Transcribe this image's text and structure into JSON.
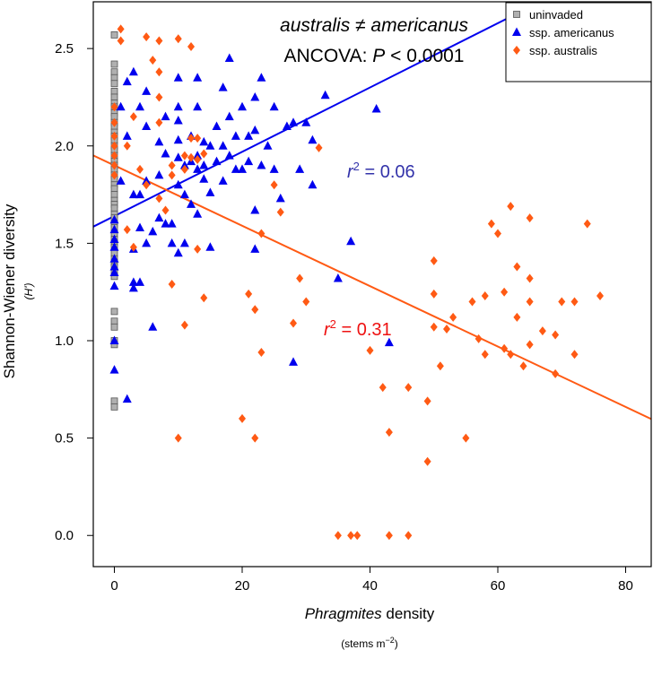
{
  "chart_data": {
    "type": "scatter",
    "xlabel": {
      "italic": "Phragmites",
      "rest": " density"
    },
    "xlabel_units": {
      "base": "(stems m",
      "sup": "−2",
      "close": ")"
    },
    "ylabel": "Shannon-Wiener diversity",
    "ylabel_sub": "(H')",
    "xlim": [
      -3.3,
      84
    ],
    "ylim": [
      -0.16,
      2.74
    ],
    "xticks": [
      0,
      20,
      40,
      60,
      80
    ],
    "yticks": [
      0.0,
      0.5,
      1.0,
      1.5,
      2.0,
      2.5
    ],
    "annotation_top": {
      "text": "australis ≠ americanus"
    },
    "annotation_ancova": {
      "prefix": "ANCOVA: ",
      "p": "P",
      "suffix": " < 0.0001"
    },
    "r2_blue": {
      "r": "r",
      "sup": "2",
      "value": " = 0.06"
    },
    "r2_red": {
      "r": "r",
      "sup": "2",
      "value": " = 0.31"
    },
    "fit_lines": [
      {
        "series": "ssp. americanus",
        "intercept": 1.64,
        "slope": 0.0165,
        "color": "#0000ee"
      },
      {
        "series": "ssp. australis",
        "intercept": 1.9,
        "slope": -0.0155,
        "color": "#ff5a14"
      }
    ],
    "series": [
      {
        "name": "uninvaded",
        "color": "#b0b0b0",
        "marker": "square",
        "points": [
          [
            0,
            2.57
          ],
          [
            0,
            2.42
          ],
          [
            0,
            2.38
          ],
          [
            0,
            2.35
          ],
          [
            0,
            2.32
          ],
          [
            0,
            2.28
          ],
          [
            0,
            2.25
          ],
          [
            0,
            2.22
          ],
          [
            0,
            2.2
          ],
          [
            0,
            2.17
          ],
          [
            0,
            2.15
          ],
          [
            0,
            2.12
          ],
          [
            0,
            2.1
          ],
          [
            0,
            2.07
          ],
          [
            0,
            2.05
          ],
          [
            0,
            2.03
          ],
          [
            0,
            2.0
          ],
          [
            0,
            1.98
          ],
          [
            0,
            1.95
          ],
          [
            0,
            1.92
          ],
          [
            0,
            1.9
          ],
          [
            0,
            1.88
          ],
          [
            0,
            1.85
          ],
          [
            0,
            1.83
          ],
          [
            0,
            1.8
          ],
          [
            0,
            1.78
          ],
          [
            0,
            1.75
          ],
          [
            0,
            1.72
          ],
          [
            0,
            1.7
          ],
          [
            0,
            1.68
          ],
          [
            0,
            1.65
          ],
          [
            0,
            1.63
          ],
          [
            0,
            1.6
          ],
          [
            0,
            1.58
          ],
          [
            0,
            1.55
          ],
          [
            0,
            1.52
          ],
          [
            0,
            1.5
          ],
          [
            0,
            1.48
          ],
          [
            0,
            1.45
          ],
          [
            0,
            1.42
          ],
          [
            0,
            1.4
          ],
          [
            0,
            1.38
          ],
          [
            0,
            1.35
          ],
          [
            0,
            1.33
          ],
          [
            0,
            1.15
          ],
          [
            0,
            1.1
          ],
          [
            0,
            1.07
          ],
          [
            0,
            1.0
          ],
          [
            0,
            0.98
          ],
          [
            0,
            0.69
          ],
          [
            0,
            0.66
          ]
        ]
      },
      {
        "name": "ssp. americanus",
        "color": "#0000ee",
        "marker": "triangle",
        "points": [
          [
            0,
            1.57
          ],
          [
            0,
            1.52
          ],
          [
            0,
            1.48
          ],
          [
            0,
            1.42
          ],
          [
            0,
            1.38
          ],
          [
            0,
            1.35
          ],
          [
            0,
            1.62
          ],
          [
            0,
            1.28
          ],
          [
            0,
            1.0
          ],
          [
            0,
            0.85
          ],
          [
            2,
            0.7
          ],
          [
            1,
            1.82
          ],
          [
            1,
            2.2
          ],
          [
            2,
            2.33
          ],
          [
            2,
            2.05
          ],
          [
            3,
            2.38
          ],
          [
            3,
            1.75
          ],
          [
            3,
            1.47
          ],
          [
            3,
            1.3
          ],
          [
            3,
            1.27
          ],
          [
            4,
            1.75
          ],
          [
            4,
            2.2
          ],
          [
            4,
            1.58
          ],
          [
            4,
            1.3
          ],
          [
            5,
            2.28
          ],
          [
            5,
            2.1
          ],
          [
            5,
            1.5
          ],
          [
            5,
            1.82
          ],
          [
            6,
            1.56
          ],
          [
            6,
            1.07
          ],
          [
            7,
            2.02
          ],
          [
            7,
            1.85
          ],
          [
            7,
            1.63
          ],
          [
            8,
            2.15
          ],
          [
            8,
            1.96
          ],
          [
            8,
            1.6
          ],
          [
            9,
            1.6
          ],
          [
            9,
            1.5
          ],
          [
            10,
            2.35
          ],
          [
            10,
            2.2
          ],
          [
            10,
            2.13
          ],
          [
            10,
            2.03
          ],
          [
            10,
            1.94
          ],
          [
            10,
            1.8
          ],
          [
            10,
            1.45
          ],
          [
            11,
            1.9
          ],
          [
            11,
            1.75
          ],
          [
            11,
            1.5
          ],
          [
            12,
            2.05
          ],
          [
            12,
            1.92
          ],
          [
            12,
            1.7
          ],
          [
            13,
            2.35
          ],
          [
            13,
            2.2
          ],
          [
            13,
            1.95
          ],
          [
            13,
            1.88
          ],
          [
            13,
            1.65
          ],
          [
            14,
            2.02
          ],
          [
            14,
            1.9
          ],
          [
            14,
            1.83
          ],
          [
            15,
            2.0
          ],
          [
            15,
            1.76
          ],
          [
            15,
            1.48
          ],
          [
            16,
            2.1
          ],
          [
            16,
            1.92
          ],
          [
            17,
            2.3
          ],
          [
            17,
            2.0
          ],
          [
            17,
            1.82
          ],
          [
            18,
            2.45
          ],
          [
            18,
            2.15
          ],
          [
            18,
            1.95
          ],
          [
            19,
            2.05
          ],
          [
            19,
            1.88
          ],
          [
            20,
            2.2
          ],
          [
            20,
            1.88
          ],
          [
            21,
            2.05
          ],
          [
            21,
            1.92
          ],
          [
            22,
            2.25
          ],
          [
            22,
            2.08
          ],
          [
            22,
            1.67
          ],
          [
            22,
            1.47
          ],
          [
            23,
            2.35
          ],
          [
            23,
            1.9
          ],
          [
            24,
            2.0
          ],
          [
            25,
            2.2
          ],
          [
            25,
            1.88
          ],
          [
            26,
            1.73
          ],
          [
            27,
            2.1
          ],
          [
            28,
            2.12
          ],
          [
            28,
            0.89
          ],
          [
            29,
            1.88
          ],
          [
            30,
            2.12
          ],
          [
            31,
            2.03
          ],
          [
            31,
            1.8
          ],
          [
            33,
            2.26
          ],
          [
            35,
            1.32
          ],
          [
            37,
            1.51
          ],
          [
            41,
            2.19
          ],
          [
            43,
            0.99
          ]
        ]
      },
      {
        "name": "ssp. australis",
        "color": "#ff5a14",
        "marker": "diamond",
        "points": [
          [
            0,
            2.2
          ],
          [
            0,
            2.12
          ],
          [
            0,
            2.05
          ],
          [
            0,
            2.0
          ],
          [
            0,
            1.95
          ],
          [
            0,
            1.9
          ],
          [
            0,
            1.85
          ],
          [
            1,
            2.6
          ],
          [
            1,
            2.54
          ],
          [
            2,
            2.0
          ],
          [
            2,
            1.57
          ],
          [
            3,
            2.15
          ],
          [
            3,
            1.48
          ],
          [
            4,
            1.88
          ],
          [
            5,
            2.56
          ],
          [
            5,
            1.8
          ],
          [
            6,
            2.44
          ],
          [
            7,
            2.54
          ],
          [
            7,
            2.38
          ],
          [
            7,
            2.25
          ],
          [
            7,
            2.12
          ],
          [
            7,
            1.73
          ],
          [
            8,
            1.67
          ],
          [
            9,
            1.9
          ],
          [
            9,
            1.85
          ],
          [
            9,
            1.29
          ],
          [
            10,
            2.55
          ],
          [
            10,
            0.5
          ],
          [
            11,
            1.95
          ],
          [
            11,
            1.88
          ],
          [
            11,
            1.08
          ],
          [
            12,
            2.51
          ],
          [
            12,
            2.04
          ],
          [
            12,
            1.94
          ],
          [
            13,
            2.04
          ],
          [
            13,
            1.93
          ],
          [
            13,
            1.47
          ],
          [
            14,
            1.96
          ],
          [
            14,
            1.22
          ],
          [
            20,
            0.6
          ],
          [
            21,
            1.24
          ],
          [
            22,
            1.16
          ],
          [
            22,
            0.5
          ],
          [
            23,
            1.55
          ],
          [
            23,
            0.94
          ],
          [
            25,
            1.8
          ],
          [
            26,
            1.66
          ],
          [
            28,
            1.09
          ],
          [
            29,
            1.32
          ],
          [
            30,
            1.2
          ],
          [
            32,
            1.99
          ],
          [
            35,
            0.0
          ],
          [
            37,
            0.0
          ],
          [
            38,
            0.0
          ],
          [
            40,
            0.95
          ],
          [
            42,
            0.76
          ],
          [
            43,
            0.53
          ],
          [
            43,
            0.0
          ],
          [
            46,
            0.76
          ],
          [
            46,
            0.0
          ],
          [
            49,
            0.69
          ],
          [
            49,
            0.38
          ],
          [
            50,
            1.41
          ],
          [
            50,
            1.24
          ],
          [
            50,
            1.07
          ],
          [
            51,
            0.87
          ],
          [
            52,
            1.06
          ],
          [
            53,
            1.12
          ],
          [
            55,
            0.5
          ],
          [
            56,
            1.2
          ],
          [
            57,
            1.01
          ],
          [
            58,
            1.23
          ],
          [
            58,
            0.93
          ],
          [
            59,
            1.6
          ],
          [
            60,
            1.55
          ],
          [
            61,
            1.25
          ],
          [
            61,
            0.96
          ],
          [
            62,
            1.69
          ],
          [
            62,
            0.93
          ],
          [
            63,
            1.38
          ],
          [
            63,
            1.12
          ],
          [
            64,
            0.87
          ],
          [
            65,
            1.63
          ],
          [
            65,
            1.32
          ],
          [
            65,
            1.2
          ],
          [
            65,
            0.98
          ],
          [
            67,
            1.05
          ],
          [
            69,
            1.03
          ],
          [
            69,
            0.83
          ],
          [
            70,
            1.2
          ],
          [
            72,
            1.2
          ],
          [
            72,
            0.93
          ],
          [
            74,
            1.6
          ],
          [
            76,
            1.23
          ]
        ]
      }
    ]
  }
}
